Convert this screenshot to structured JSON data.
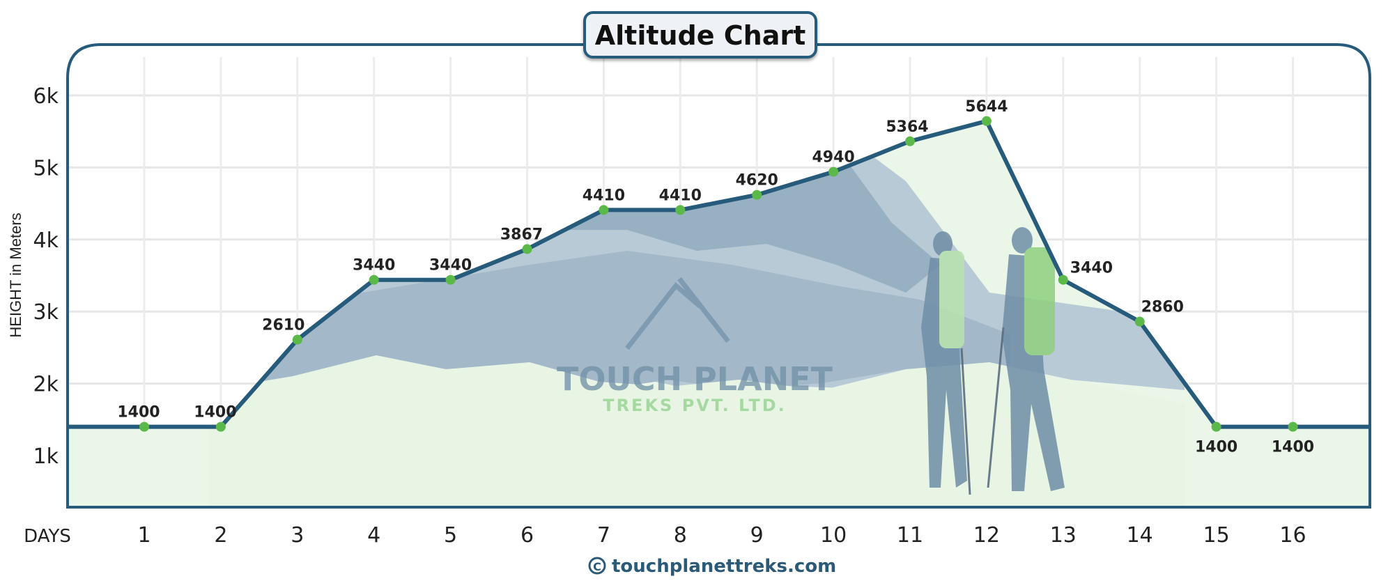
{
  "chart_data": {
    "type": "line",
    "title": "Altitude Chart",
    "xlabel": "DAYS",
    "ylabel": "HEIGHT in Meters",
    "categories": [
      1,
      2,
      3,
      4,
      5,
      6,
      7,
      8,
      9,
      10,
      11,
      12,
      13,
      14,
      15,
      16
    ],
    "values": [
      1400,
      1400,
      2610,
      3440,
      3440,
      3867,
      4410,
      4410,
      4620,
      4940,
      5364,
      5644,
      3440,
      2860,
      1400,
      1400
    ],
    "yticks": [
      {
        "v": 1000,
        "label": "1k"
      },
      {
        "v": 2000,
        "label": "2k"
      },
      {
        "v": 3000,
        "label": "3k"
      },
      {
        "v": 4000,
        "label": "4k"
      },
      {
        "v": 5000,
        "label": "5k"
      },
      {
        "v": 6000,
        "label": "6k"
      }
    ],
    "ylim": [
      250,
      6600
    ],
    "grid": true,
    "colors": {
      "line": "#265b7c",
      "marker": "#5bb94a",
      "frame": "#265b7c",
      "fill_base": "#eaf6e8",
      "mountain": "#a9bccb"
    }
  },
  "watermark": {
    "line1": "TOUCH PLANET",
    "line2": "TREKS  PVT. LTD."
  },
  "footer": {
    "copyright_icon": "copyright-icon",
    "text": "touchplanettreks.com"
  }
}
